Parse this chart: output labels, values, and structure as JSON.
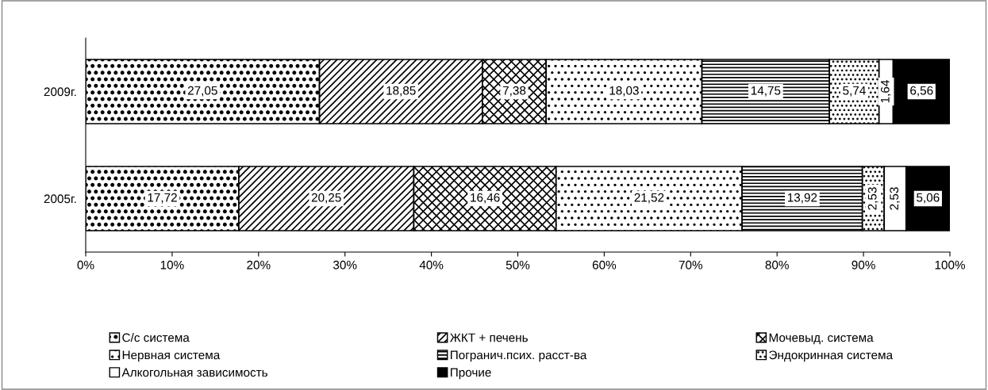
{
  "chart_data": {
    "type": "bar",
    "orientation": "horizontal",
    "stacked": true,
    "categories": [
      "2009г.",
      "2005г."
    ],
    "series": [
      {
        "name": "С/с система",
        "color": "#000000",
        "values": [
          27.05,
          17.72
        ],
        "value_labels": [
          "27,05",
          "17,72"
        ]
      },
      {
        "name": "ЖКТ + печень",
        "color": "#000000",
        "values": [
          18.85,
          20.25
        ],
        "value_labels": [
          "18,85",
          "20,25"
        ]
      },
      {
        "name": "Мочевыд. система",
        "color": "#000000",
        "values": [
          7.38,
          16.46
        ],
        "value_labels": [
          "7,38",
          "16,46"
        ]
      },
      {
        "name": "Нервная система",
        "color": "#000000",
        "values": [
          18.03,
          21.52
        ],
        "value_labels": [
          "18,03",
          "21,52"
        ]
      },
      {
        "name": "Погранич.псих. расст-ва",
        "color": "#000000",
        "values": [
          14.75,
          13.92
        ],
        "value_labels": [
          "14,75",
          "13,92"
        ]
      },
      {
        "name": "Эндокринная система",
        "color": "#000000",
        "values": [
          5.74,
          2.53
        ],
        "value_labels": [
          "5,74",
          "2,53"
        ]
      },
      {
        "name": "Алкогольная зависимость",
        "color": "#ffffff",
        "values": [
          1.64,
          2.53
        ],
        "value_labels": [
          "1,64",
          "2,53"
        ]
      },
      {
        "name": "Прочие",
        "color": "#000000",
        "values": [
          6.56,
          5.06
        ],
        "value_labels": [
          "6,56",
          "5,06"
        ]
      }
    ],
    "xlim": [
      0,
      100
    ],
    "xticks": [
      {
        "value": 0,
        "label": "0%"
      },
      {
        "value": 10,
        "label": "10%"
      },
      {
        "value": 20,
        "label": "20%"
      },
      {
        "value": 30,
        "label": "30%"
      },
      {
        "value": 40,
        "label": "40%"
      },
      {
        "value": 50,
        "label": "50%"
      },
      {
        "value": 60,
        "label": "60%"
      },
      {
        "value": 70,
        "label": "70%"
      },
      {
        "value": 80,
        "label": "80%"
      },
      {
        "value": 90,
        "label": "90%"
      },
      {
        "value": 100,
        "label": "100%"
      }
    ],
    "legend": "bottom",
    "grid": false
  }
}
